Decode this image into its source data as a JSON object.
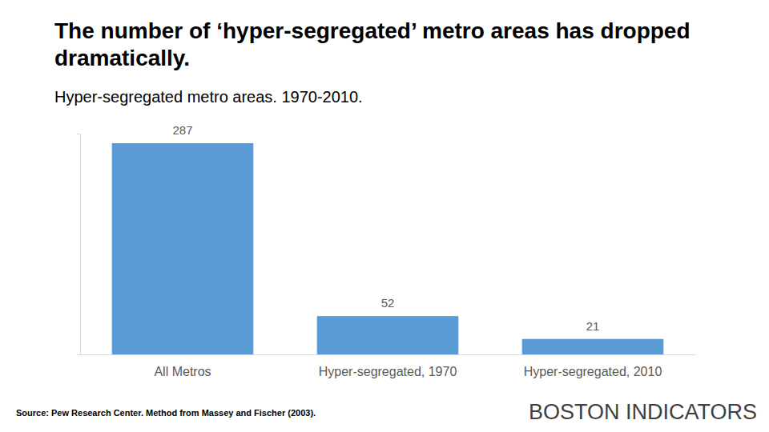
{
  "chart_data": {
    "type": "bar",
    "title": "The number of ‘hyper-segregated’ metro areas has dropped dramatically.",
    "subtitle": "Hyper-segregated metro areas. 1970-2010.",
    "categories": [
      "All Metros",
      "Hyper-segregated, 1970",
      "Hyper-segregated, 2010"
    ],
    "values": [
      287,
      52,
      21
    ],
    "color": "#5b9bd5",
    "ylim": [
      0,
      300
    ],
    "yticks": [
      0,
      300
    ],
    "grid": false,
    "data_labels": true,
    "tick_labels": "x",
    "source": "Source: Pew Research Center. Method from Massey and Fischer (2003).",
    "logo": "BOSTON INDICATORS"
  }
}
